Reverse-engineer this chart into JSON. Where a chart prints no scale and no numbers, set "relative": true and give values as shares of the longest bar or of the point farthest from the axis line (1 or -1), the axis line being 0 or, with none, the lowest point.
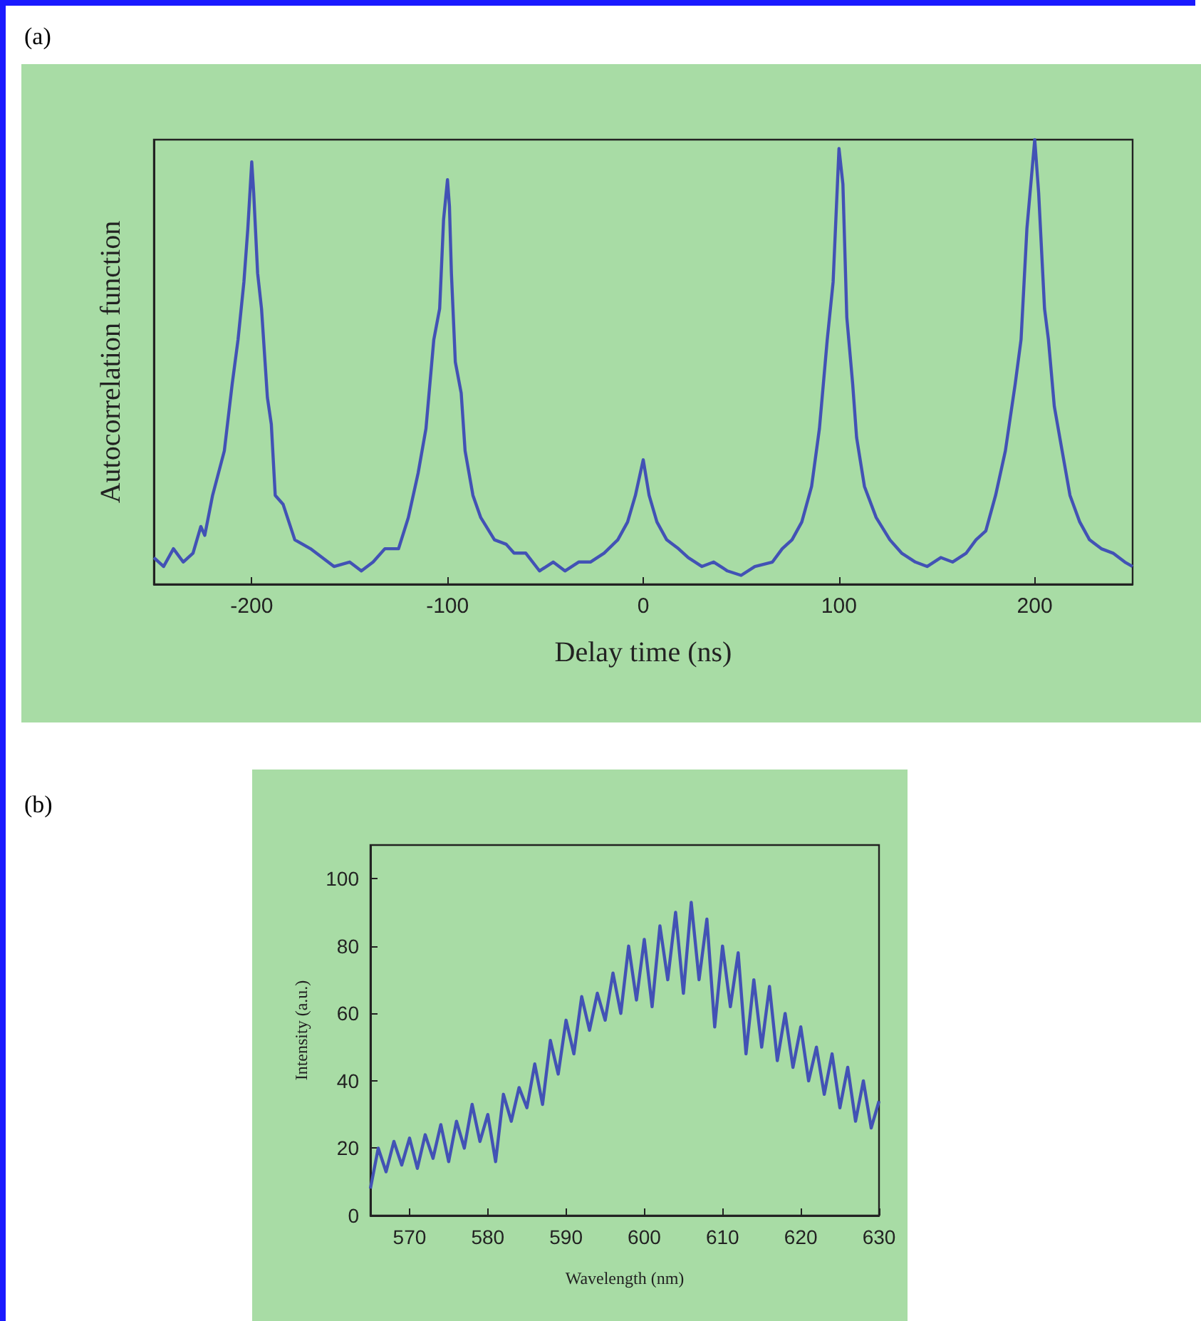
{
  "chart_data": [
    {
      "type": "line",
      "annotations": [
        "(a)"
      ],
      "xlabel": "Delay time (ns)",
      "ylabel": "Autocorrelation function",
      "relative": true,
      "xlim": [
        -250,
        250
      ],
      "xticks": [
        -200,
        -100,
        0,
        100,
        200
      ],
      "grid": false,
      "marker": "none",
      "line_style": "solid",
      "x": [
        -250,
        -245,
        -240,
        -235,
        -230,
        -226,
        -224,
        -220,
        -214,
        -210,
        -207,
        -204,
        -202,
        -200,
        -199,
        -197,
        -195,
        -192,
        -190,
        -188,
        -184,
        -178,
        -170,
        -164,
        -158,
        -150,
        -144,
        -138,
        -132,
        -125,
        -120,
        -115,
        -111,
        -107,
        -104,
        -102,
        -100,
        -99,
        -98,
        -96,
        -93,
        -91,
        -87,
        -83,
        -76,
        -70,
        -66,
        -60,
        -53,
        -46,
        -40,
        -33,
        -27,
        -20,
        -13,
        -8,
        -4,
        0,
        3,
        7,
        12,
        18,
        23,
        30,
        36,
        43,
        50,
        57,
        66,
        71,
        76,
        81,
        86,
        90,
        94,
        97,
        100,
        102,
        104,
        107,
        109,
        113,
        119,
        126,
        132,
        139,
        145,
        152,
        158,
        165,
        170,
        175,
        180,
        185,
        190,
        193,
        196,
        198,
        200,
        202,
        205,
        207,
        210,
        214,
        218,
        223,
        228,
        234,
        240,
        246,
        250
      ],
      "series": [
        {
          "color": "#4252b5",
          "values": [
            0.06,
            0.04,
            0.08,
            0.05,
            0.07,
            0.13,
            0.11,
            0.2,
            0.3,
            0.45,
            0.55,
            0.68,
            0.8,
            0.95,
            0.88,
            0.7,
            0.62,
            0.42,
            0.36,
            0.2,
            0.18,
            0.1,
            0.08,
            0.06,
            0.04,
            0.05,
            0.03,
            0.05,
            0.08,
            0.08,
            0.15,
            0.25,
            0.35,
            0.55,
            0.62,
            0.82,
            0.91,
            0.85,
            0.7,
            0.5,
            0.43,
            0.3,
            0.2,
            0.15,
            0.1,
            0.09,
            0.07,
            0.07,
            0.03,
            0.05,
            0.03,
            0.05,
            0.05,
            0.07,
            0.1,
            0.14,
            0.2,
            0.28,
            0.2,
            0.14,
            0.1,
            0.08,
            0.06,
            0.04,
            0.05,
            0.03,
            0.02,
            0.04,
            0.05,
            0.08,
            0.1,
            0.14,
            0.22,
            0.35,
            0.55,
            0.68,
            0.98,
            0.9,
            0.6,
            0.45,
            0.33,
            0.22,
            0.15,
            0.1,
            0.07,
            0.05,
            0.04,
            0.06,
            0.05,
            0.07,
            0.1,
            0.12,
            0.2,
            0.3,
            0.45,
            0.55,
            0.8,
            0.9,
            1,
            0.88,
            0.62,
            0.55,
            0.4,
            0.3,
            0.2,
            0.14,
            0.1,
            0.08,
            0.07,
            0.05,
            0.04
          ]
        }
      ]
    },
    {
      "type": "line",
      "annotations": [
        "(b)"
      ],
      "xlabel": "Wavelength (nm)",
      "ylabel": "Intensity (a.u.)",
      "xlim": [
        565,
        630
      ],
      "xticks": [
        570,
        580,
        590,
        600,
        610,
        620,
        630
      ],
      "ylim": [
        0,
        110
      ],
      "yticks": [
        0,
        20,
        40,
        60,
        80,
        100
      ],
      "grid": false,
      "marker": "none",
      "line_style": "solid",
      "x": [
        565,
        566,
        567,
        568,
        569,
        570,
        571,
        572,
        573,
        574,
        575,
        576,
        577,
        578,
        579,
        580,
        581,
        582,
        583,
        584,
        585,
        586,
        587,
        588,
        589,
        590,
        591,
        592,
        593,
        594,
        595,
        596,
        597,
        598,
        599,
        600,
        601,
        602,
        603,
        604,
        605,
        606,
        607,
        608,
        609,
        610,
        611,
        612,
        613,
        614,
        615,
        616,
        617,
        618,
        619,
        620,
        621,
        622,
        623,
        624,
        625,
        626,
        627,
        628,
        629,
        630
      ],
      "series": [
        {
          "color": "#4252b5",
          "values": [
            8,
            20,
            13,
            22,
            15,
            23,
            14,
            24,
            17,
            27,
            16,
            28,
            20,
            33,
            22,
            30,
            16,
            36,
            28,
            38,
            32,
            45,
            33,
            52,
            42,
            58,
            48,
            65,
            55,
            66,
            58,
            72,
            60,
            80,
            64,
            82,
            62,
            86,
            70,
            90,
            66,
            93,
            70,
            88,
            56,
            80,
            62,
            78,
            48,
            70,
            50,
            68,
            46,
            60,
            44,
            56,
            40,
            50,
            36,
            48,
            32,
            44,
            28,
            40,
            26,
            34
          ]
        }
      ]
    }
  ]
}
